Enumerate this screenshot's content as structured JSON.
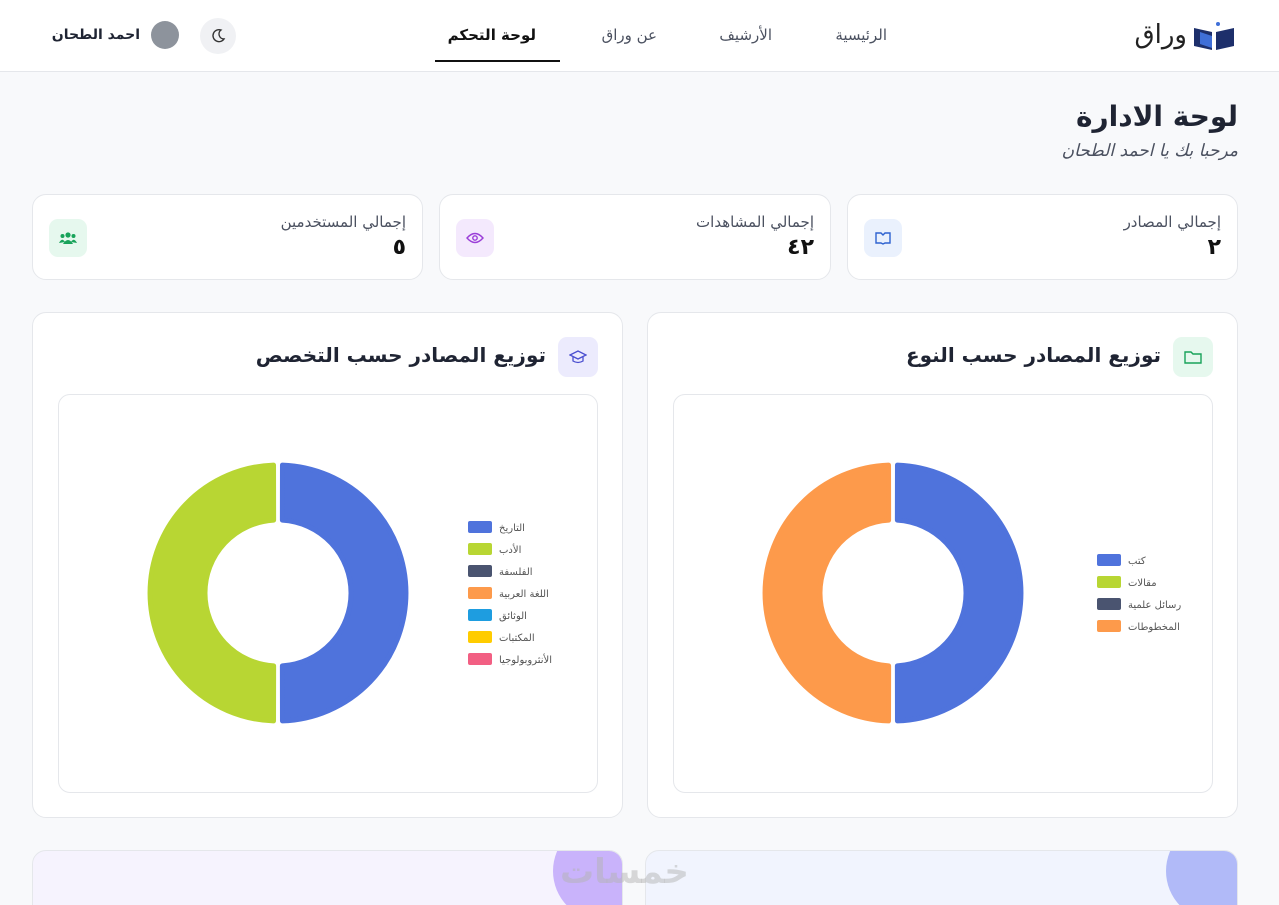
{
  "nav": {
    "brand": "وراق",
    "links": [
      "الرئيسية",
      "الأرشيف",
      "عن وراق",
      "لوحة التحكم"
    ],
    "user": "احمد الطحان"
  },
  "header": {
    "title": "لوحة الادارة",
    "subtitle": "مرحبا بك يا احمد الطحان"
  },
  "stats": [
    {
      "label": "إجمالي المصادر",
      "value": "٢"
    },
    {
      "label": "إجمالي المشاهدات",
      "value": "٤٢"
    },
    {
      "label": "إجمالي المستخدمين",
      "value": "٥"
    }
  ],
  "chart_data": [
    {
      "type": "pie",
      "title": "توزيع المصادر حسب النوع",
      "categories": [
        "كتب",
        "مقالات",
        "رسائل علمية",
        "المخطوطات"
      ],
      "values": [
        1,
        0,
        0,
        1
      ],
      "colors": [
        "#4f73dc",
        "#b8d633",
        "#4a5470",
        "#fd9a4b"
      ]
    },
    {
      "type": "pie",
      "title": "توزيع المصادر حسب التخصص",
      "categories": [
        "التاريخ",
        "الأدب",
        "الفلسفة",
        "اللغة العربية",
        "الوثائق",
        "المكتبات",
        "الأنثروبولوجيا"
      ],
      "values": [
        1,
        1,
        0,
        0,
        0,
        0,
        0
      ],
      "colors": [
        "#4f73dc",
        "#b8d633",
        "#4a5470",
        "#fd9a4b",
        "#1e9de0",
        "#ffcc00",
        "#f25f83"
      ]
    }
  ],
  "watermark": "خمسات"
}
